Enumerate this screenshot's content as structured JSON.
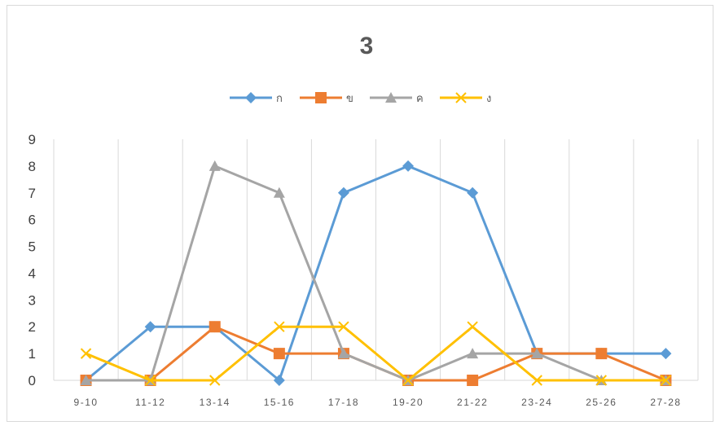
{
  "chart_data": {
    "type": "line",
    "title": "3",
    "xlabel": "",
    "ylabel": "",
    "categories": [
      "9-10",
      "11-12",
      "13-14",
      "15-16",
      "17-18",
      "19-20",
      "21-22",
      "23-24",
      "25-26",
      "27-28"
    ],
    "ylim": [
      0,
      9
    ],
    "yticks": [
      "0",
      "1",
      "2",
      "3",
      "4",
      "5",
      "6",
      "7",
      "8",
      "9"
    ],
    "grid": "vertical",
    "legend_position": "top",
    "series": [
      {
        "name": "ก",
        "color": "#5b9bd5",
        "marker": "diamond",
        "values": [
          0,
          2,
          2,
          0,
          7,
          8,
          7,
          1,
          1,
          1
        ]
      },
      {
        "name": "ข",
        "color": "#ed7d31",
        "marker": "square",
        "values": [
          0,
          0,
          2,
          1,
          1,
          0,
          0,
          1,
          1,
          0
        ]
      },
      {
        "name": "ค",
        "color": "#a5a5a5",
        "marker": "triangle",
        "values": [
          0,
          0,
          8,
          7,
          1,
          0,
          1,
          1,
          0,
          0
        ]
      },
      {
        "name": "ง",
        "color": "#ffc000",
        "marker": "x",
        "values": [
          1,
          0,
          0,
          2,
          2,
          0,
          2,
          0,
          0,
          0
        ]
      }
    ]
  }
}
